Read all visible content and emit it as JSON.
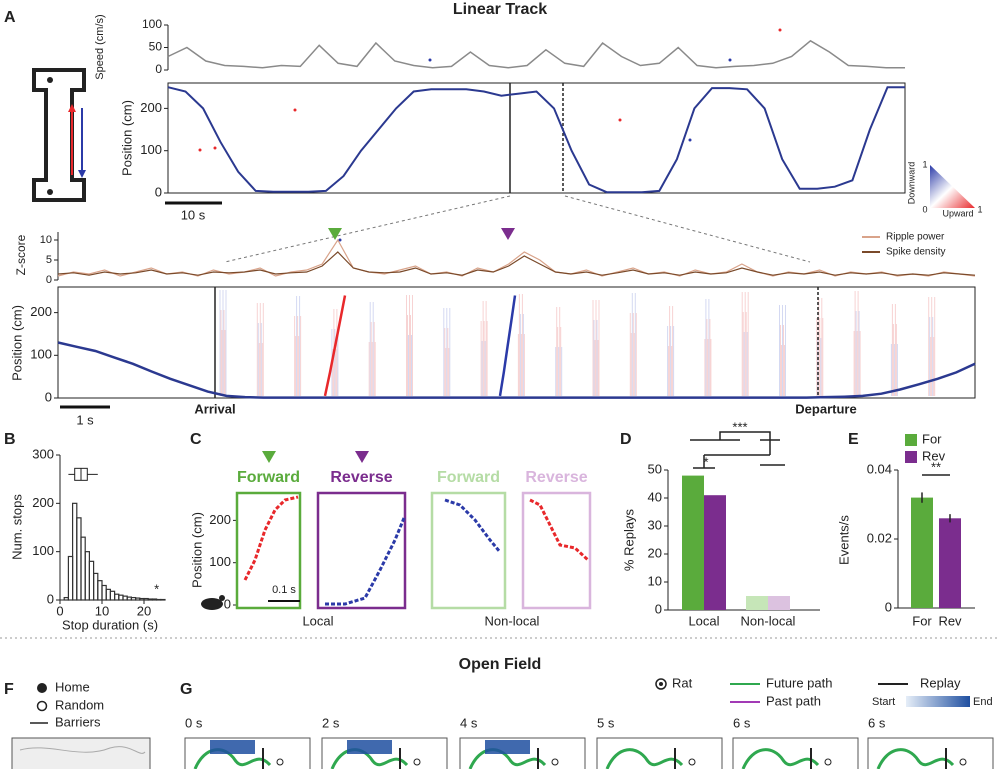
{
  "title": "Linear Track",
  "title2": "Open Field",
  "letters": [
    "A",
    "B",
    "C",
    "D",
    "E",
    "F",
    "G"
  ],
  "colorbar": {
    "label_top": "Downward",
    "label_bottom": "Upward",
    "corner_labels": [
      1,
      0,
      1
    ]
  },
  "chart_data": [
    {
      "type": "line",
      "ylabel": "Speed (cm/s)",
      "ylim": [
        0,
        100
      ],
      "yticks": [
        0,
        50,
        100
      ],
      "color": "#8a8a8a",
      "values": [
        30,
        50,
        20,
        10,
        8,
        5,
        10,
        8,
        55,
        15,
        8,
        60,
        20,
        10,
        5,
        8,
        40,
        10,
        5,
        10,
        45,
        15,
        8,
        60,
        30,
        10,
        15,
        50,
        10,
        5,
        8,
        10,
        15,
        30,
        65,
        40,
        10,
        8,
        5,
        5
      ]
    },
    {
      "type": "line",
      "ylabel": "Position (cm)",
      "ylim": [
        0,
        260
      ],
      "yticks": [
        0,
        100,
        200
      ],
      "color": "#2b3990",
      "scale_bar": "10 s",
      "values": [
        250,
        240,
        200,
        120,
        50,
        5,
        3,
        3,
        3,
        5,
        40,
        100,
        150,
        200,
        240,
        245,
        245,
        245,
        240,
        230,
        235,
        240,
        200,
        100,
        20,
        2,
        2,
        2,
        5,
        80,
        200,
        248,
        248,
        245,
        200,
        80,
        10,
        10,
        15,
        30,
        150,
        250,
        250
      ]
    },
    {
      "type": "line",
      "ylabel": "Z-score",
      "ylim": [
        0,
        12
      ],
      "yticks": [
        0,
        5,
        10
      ],
      "series": [
        {
          "name": "Ripple power",
          "color": "#d9a38a",
          "values": [
            1,
            2,
            1.5,
            2.5,
            1,
            2,
            3,
            1.5,
            2,
            1,
            2.5,
            1.5,
            2,
            3,
            1,
            2,
            2.5,
            4,
            10,
            3,
            2,
            1.5,
            2.5,
            3.5,
            1.5,
            2,
            1,
            3,
            2,
            4,
            7,
            5,
            2,
            1.5,
            2.5,
            1,
            2,
            3,
            1.5,
            2,
            1,
            2.5,
            1.5,
            2,
            4,
            2,
            1,
            2,
            1.5,
            2.5,
            1,
            2,
            1.5,
            2,
            1,
            1.5,
            1,
            2,
            1.5,
            1
          ]
        },
        {
          "name": "Spike density",
          "color": "#7a4a2a",
          "values": [
            1.5,
            1.8,
            1.2,
            2,
            1.5,
            1.8,
            2.5,
            1.5,
            1.8,
            1.2,
            2,
            1.8,
            2,
            2.5,
            1.5,
            1.8,
            2,
            3.5,
            7,
            3,
            2,
            1.8,
            2,
            3,
            1.5,
            1.8,
            1.2,
            2.5,
            2,
            3.5,
            6,
            4,
            2,
            1.5,
            2,
            1.2,
            1.8,
            2.5,
            1.5,
            1.8,
            1.2,
            2,
            1.5,
            1.8,
            3,
            2,
            1.2,
            1.8,
            1.5,
            2,
            1.2,
            1.8,
            1.5,
            1.8,
            1.2,
            1.5,
            1.2,
            1.8,
            1.5,
            1.2
          ]
        }
      ]
    },
    {
      "type": "line",
      "ylabel": "Position (cm)",
      "ylim": [
        0,
        260
      ],
      "yticks": [
        0,
        100,
        200
      ],
      "color": "#2b3990",
      "scale_bar": "1 s",
      "annotations": [
        "Arrival",
        "Departure"
      ],
      "values": [
        130,
        120,
        110,
        95,
        80,
        62,
        45,
        30,
        15,
        5,
        2,
        1,
        1,
        1,
        1,
        1,
        1,
        1,
        1,
        1,
        1,
        1,
        1,
        1,
        1,
        1,
        1,
        1,
        1,
        1,
        1,
        1,
        1,
        1,
        1,
        1,
        1,
        1,
        1,
        1,
        1,
        2,
        3,
        5,
        10,
        20,
        32,
        45,
        60,
        80
      ],
      "replays": [
        {
          "color": "#e8282b",
          "values": [
            5,
            60,
            120,
            180,
            240
          ]
        },
        {
          "color": "#2b3aa8",
          "values": [
            5,
            60,
            120,
            180,
            240
          ]
        }
      ]
    },
    {
      "type": "histogram",
      "xlabel": "Stop duration (s)",
      "ylabel": "Num. stops",
      "color": "#333333",
      "bins": [
        0,
        1,
        2,
        3,
        4,
        5,
        6,
        7,
        8,
        9,
        10,
        11,
        12,
        13,
        14,
        15,
        16,
        17,
        18,
        19,
        20,
        21,
        22,
        23,
        24,
        25
      ],
      "counts": [
        0,
        5,
        90,
        200,
        170,
        130,
        100,
        80,
        55,
        40,
        30,
        22,
        18,
        12,
        10,
        8,
        6,
        5,
        4,
        3,
        3,
        2,
        2,
        1,
        1
      ],
      "xlim": [
        0,
        25
      ],
      "ylim": [
        0,
        300
      ],
      "xticks": [
        0,
        10,
        20
      ],
      "yticks": [
        0,
        100,
        200,
        300
      ],
      "boxplot": {
        "whisker_low": 2,
        "q1": 3.5,
        "median": 5,
        "q3": 6.5,
        "whisker_high": 9,
        "y": 260
      },
      "annotation": "*"
    },
    {
      "type": "replay_examples",
      "ylabel": "Position (cm)",
      "ylim": [
        0,
        260
      ],
      "yticks": [
        0,
        100,
        200
      ],
      "scale_bar": "0.1 s",
      "panels": [
        {
          "label": "Forward",
          "color": "#5aab3c"
        },
        {
          "label": "Reverse",
          "color": "#7b2d8e"
        },
        {
          "label": "Forward",
          "color": "#b5dca5"
        },
        {
          "label": "Reverse",
          "color": "#d9b5dd"
        }
      ],
      "groups": [
        "Local",
        "Non-local"
      ]
    },
    {
      "type": "bar",
      "ylabel": "% Replays",
      "categories": [
        "Local",
        "Non-local"
      ],
      "ylim": [
        0,
        50
      ],
      "yticks": [
        0,
        10,
        20,
        30,
        40,
        50
      ],
      "series": [
        {
          "name": "For",
          "color": "#5aab3c",
          "colors": [
            "#5aab3c",
            "#c6e6b8"
          ],
          "values": [
            48,
            5
          ]
        },
        {
          "name": "Rev",
          "color": "#7b2d8e",
          "colors": [
            "#7b2d8e",
            "#dcc2e0"
          ],
          "values": [
            41,
            5
          ]
        }
      ],
      "significance": [
        "*",
        "***"
      ]
    },
    {
      "type": "bar",
      "ylabel": "Events/s",
      "categories": [
        "For",
        "Rev"
      ],
      "ylim": [
        0,
        0.04
      ],
      "yticks": [
        0,
        0.02,
        0.04
      ],
      "colors": [
        "#5aab3c",
        "#7b2d8e"
      ],
      "values": [
        0.032,
        0.026
      ],
      "errors": [
        0.0015,
        0.0012
      ],
      "significance": [
        "**"
      ]
    }
  ],
  "open_field": {
    "legend_f": [
      "Home",
      "Random",
      "Barriers"
    ],
    "legend_g": {
      "rat": "Rat",
      "future": "Future path",
      "past": "Past path",
      "replay": "Replay",
      "start": "Start",
      "end": "End"
    },
    "frame_times": [
      "0 s",
      "2 s",
      "4 s",
      "5 s",
      "6 s",
      "6 s"
    ]
  }
}
